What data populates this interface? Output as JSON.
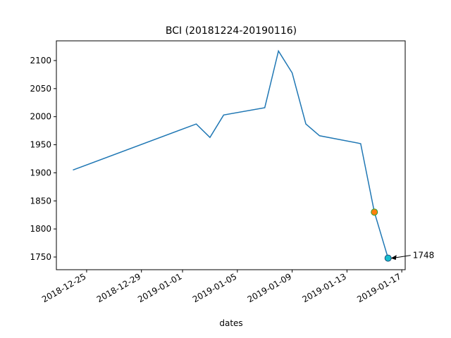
{
  "chart_data": {
    "type": "line",
    "title": "BCI (20181224-20190116)",
    "x_label": "dates",
    "x": [
      "2018-12-24",
      "2019-01-02",
      "2019-01-03",
      "2019-01-04",
      "2019-01-07",
      "2019-01-08",
      "2019-01-09",
      "2019-01-10",
      "2019-01-11",
      "2019-01-14",
      "2019-01-15",
      "2019-01-16"
    ],
    "series": [
      {
        "name": "BCI",
        "color": "#1f77b4",
        "values": [
          1905,
          1987,
          1963,
          2003,
          2016,
          2117,
          2078,
          1987,
          1966,
          1952,
          1830,
          1748
        ]
      }
    ],
    "highlights": [
      {
        "x": "2019-01-15",
        "y": 1830,
        "color": "#ff7f0e",
        "edgecolor": "#2ca02c"
      },
      {
        "x": "2019-01-16",
        "y": 1748,
        "color": "#17becf",
        "edgecolor": "#1f4e79"
      }
    ],
    "annotation": {
      "text": 1748,
      "x": "2019-01-16",
      "y": 1748
    },
    "xlim": [
      "2018-12-22T19:00",
      "2019-01-17T06:00"
    ],
    "xticks": [
      "2018-12-25",
      "2018-12-29",
      "2019-01-01",
      "2019-01-05",
      "2019-01-09",
      "2019-01-13",
      "2019-01-17"
    ],
    "ylim": [
      1727.4,
      2135.1
    ],
    "yticks": [
      1750,
      1800,
      1850,
      1900,
      1950,
      2000,
      2050,
      2100
    ]
  }
}
